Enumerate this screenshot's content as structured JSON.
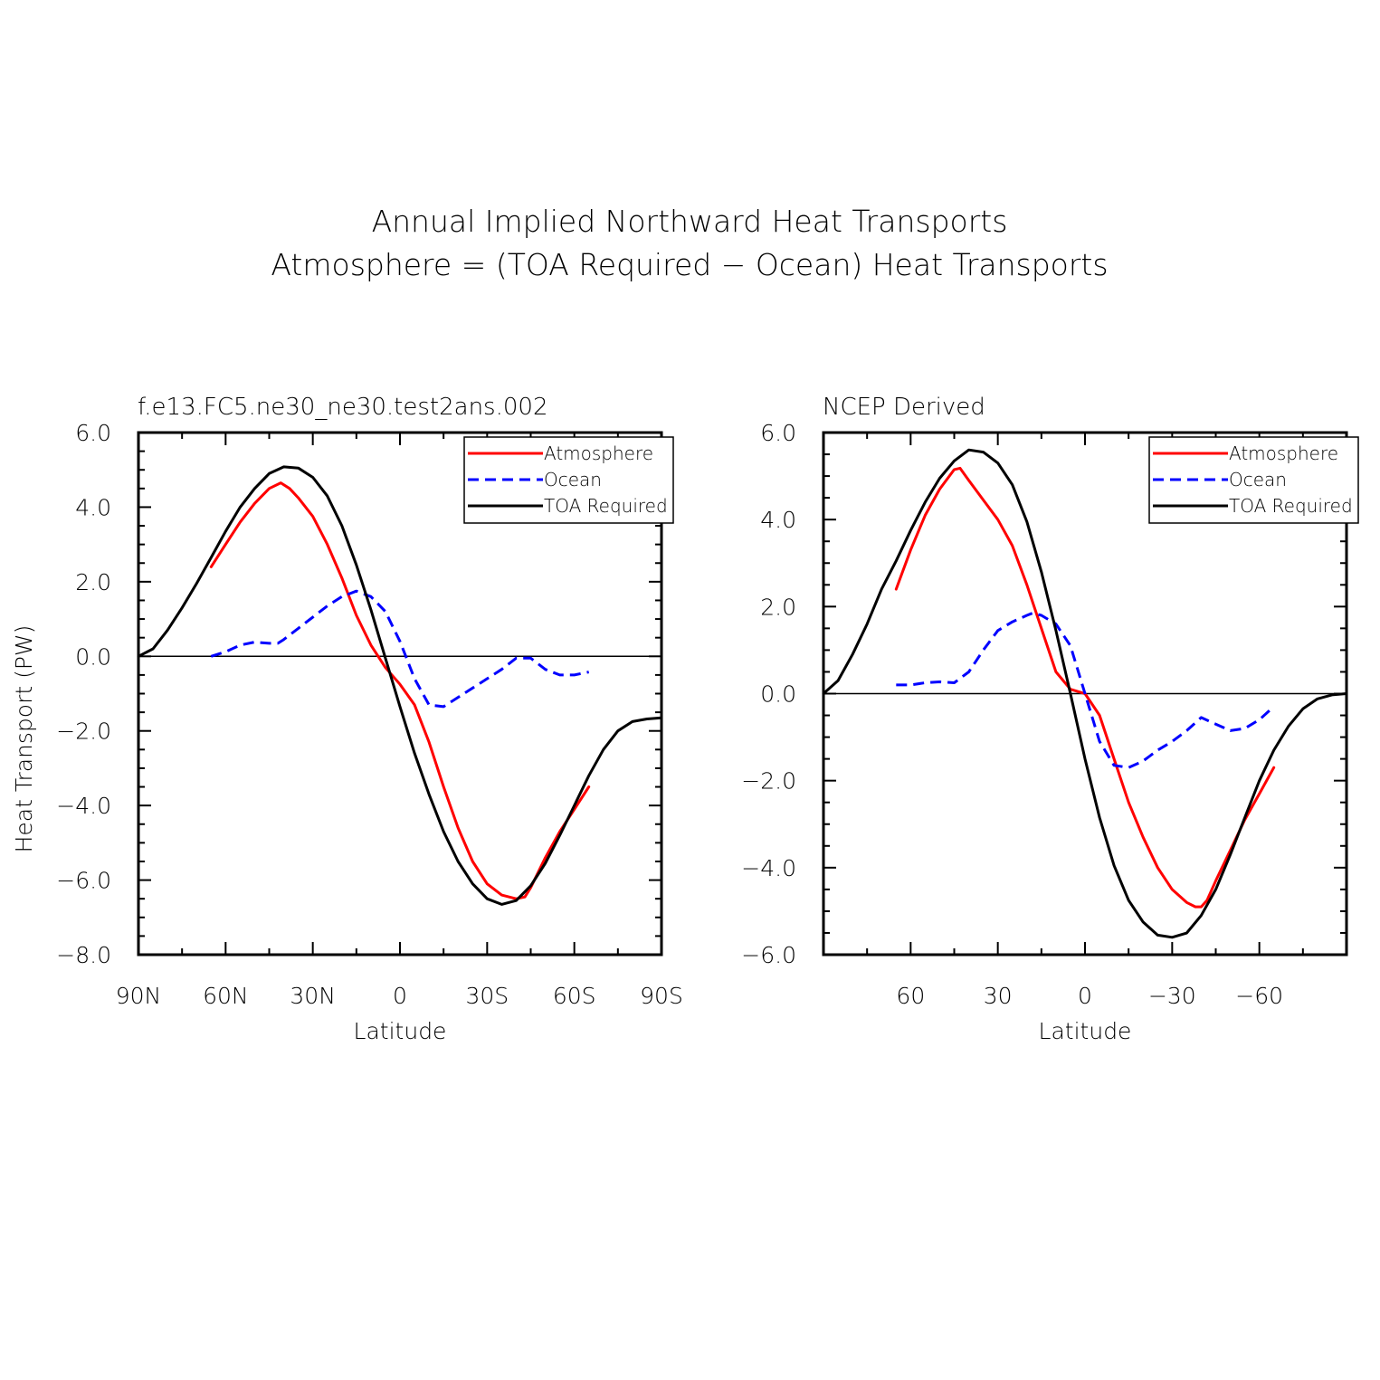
{
  "figure": {
    "title_line1": "Annual Implied Northward Heat Transports",
    "title_line2": "Atmosphere = (TOA Required − Ocean) Heat Transports"
  },
  "colors": {
    "atmosphere": "#ff0000",
    "ocean": "#0000ff",
    "toa": "#000000"
  },
  "chart_data": [
    {
      "type": "line",
      "title": "f.e13.FC5.ne30_ne30.test2ans.002",
      "xlabel": "Latitude",
      "ylabel": "Heat Transport (PW)",
      "xlim": [
        90,
        -90
      ],
      "ylim": [
        -8,
        6
      ],
      "xticks": [
        {
          "value": 90,
          "label": "90N"
        },
        {
          "value": 60,
          "label": "60N"
        },
        {
          "value": 30,
          "label": "30N"
        },
        {
          "value": 0,
          "label": "0"
        },
        {
          "value": -30,
          "label": "30S"
        },
        {
          "value": -60,
          "label": "60S"
        },
        {
          "value": -90,
          "label": "90S"
        }
      ],
      "yticks": [
        {
          "value": 6,
          "label": "6.0"
        },
        {
          "value": 4,
          "label": "4.0"
        },
        {
          "value": 2,
          "label": "2.0"
        },
        {
          "value": 0,
          "label": "0.0"
        },
        {
          "value": -2,
          "label": "−2.0"
        },
        {
          "value": -4,
          "label": "−4.0"
        },
        {
          "value": -6,
          "label": "−6.0"
        },
        {
          "value": -8,
          "label": "−8.0"
        }
      ],
      "legend_position": "top-right",
      "series": [
        {
          "name": "Atmosphere",
          "style": "solid",
          "x": [
            65,
            60,
            55,
            50,
            45,
            41,
            38,
            35,
            30,
            25,
            20,
            15,
            10,
            5,
            0,
            -5,
            -10,
            -15,
            -20,
            -25,
            -30,
            -35,
            -40,
            -43,
            -45,
            -50,
            -55,
            -60,
            -65
          ],
          "y": [
            2.4,
            3.0,
            3.6,
            4.1,
            4.5,
            4.65,
            4.5,
            4.25,
            3.75,
            3.0,
            2.1,
            1.1,
            0.3,
            -0.3,
            -0.75,
            -1.3,
            -2.3,
            -3.5,
            -4.6,
            -5.5,
            -6.1,
            -6.4,
            -6.5,
            -6.45,
            -6.2,
            -5.4,
            -4.7,
            -4.1,
            -3.5
          ]
        },
        {
          "name": "Ocean",
          "style": "dashed",
          "x": [
            65,
            60,
            55,
            50,
            45,
            42,
            40,
            35,
            30,
            25,
            20,
            15,
            10,
            5,
            0,
            -5,
            -10,
            -15,
            -20,
            -25,
            -30,
            -35,
            -40,
            -45,
            -50,
            -55,
            -60,
            -65
          ],
          "y": [
            0.0,
            0.12,
            0.3,
            0.38,
            0.35,
            0.35,
            0.45,
            0.75,
            1.05,
            1.35,
            1.6,
            1.75,
            1.6,
            1.2,
            0.4,
            -0.6,
            -1.3,
            -1.35,
            -1.1,
            -0.85,
            -0.6,
            -0.35,
            -0.05,
            -0.05,
            -0.35,
            -0.5,
            -0.5,
            -0.42
          ]
        },
        {
          "name": "TOA Required",
          "style": "solid",
          "x": [
            90,
            85,
            80,
            75,
            70,
            65,
            60,
            55,
            50,
            45,
            40,
            35,
            30,
            25,
            20,
            15,
            10,
            5,
            0,
            -5,
            -10,
            -15,
            -20,
            -25,
            -30,
            -35,
            -40,
            -45,
            -50,
            -55,
            -60,
            -65,
            -70,
            -75,
            -80,
            -85,
            -90
          ],
          "y": [
            0.0,
            0.2,
            0.7,
            1.3,
            1.95,
            2.65,
            3.35,
            4.0,
            4.5,
            4.9,
            5.08,
            5.05,
            4.8,
            4.3,
            3.5,
            2.45,
            1.25,
            -0.05,
            -1.35,
            -2.6,
            -3.7,
            -4.7,
            -5.5,
            -6.1,
            -6.5,
            -6.65,
            -6.55,
            -6.15,
            -5.55,
            -4.8,
            -4.0,
            -3.2,
            -2.5,
            -2.0,
            -1.75,
            -1.68,
            -1.65
          ]
        }
      ]
    },
    {
      "type": "line",
      "title": "NCEP Derived",
      "xlabel": "Latitude",
      "ylabel": "",
      "xlim": [
        90,
        -90
      ],
      "ylim": [
        -6,
        6
      ],
      "xticks": [
        {
          "value": 60,
          "label": "60"
        },
        {
          "value": 30,
          "label": "30"
        },
        {
          "value": 0,
          "label": "0"
        },
        {
          "value": -30,
          "label": "−30"
        },
        {
          "value": -60,
          "label": "−60"
        }
      ],
      "yticks": [
        {
          "value": 6,
          "label": "6.0"
        },
        {
          "value": 4,
          "label": "4.0"
        },
        {
          "value": 2,
          "label": "2.0"
        },
        {
          "value": 0,
          "label": "0.0"
        },
        {
          "value": -2,
          "label": "−2.0"
        },
        {
          "value": -4,
          "label": "−4.0"
        },
        {
          "value": -6,
          "label": "−6.0"
        }
      ],
      "legend_position": "top-right",
      "series": [
        {
          "name": "Atmosphere",
          "style": "solid",
          "x": [
            65,
            60,
            55,
            50,
            45,
            43,
            40,
            35,
            30,
            25,
            20,
            15,
            10,
            5,
            0,
            -5,
            -10,
            -15,
            -20,
            -25,
            -30,
            -35,
            -38,
            -40,
            -42,
            -45,
            -50,
            -55,
            -60,
            -65
          ],
          "y": [
            2.4,
            3.3,
            4.1,
            4.7,
            5.15,
            5.18,
            4.9,
            4.45,
            4.0,
            3.4,
            2.5,
            1.5,
            0.5,
            0.1,
            0.0,
            -0.5,
            -1.5,
            -2.5,
            -3.3,
            -4.0,
            -4.5,
            -4.8,
            -4.9,
            -4.9,
            -4.75,
            -4.3,
            -3.6,
            -2.9,
            -2.3,
            -1.7
          ]
        },
        {
          "name": "Ocean",
          "style": "dashed",
          "x": [
            65,
            60,
            55,
            50,
            45,
            40,
            35,
            30,
            25,
            20,
            18,
            15,
            10,
            5,
            0,
            -5,
            -10,
            -15,
            -20,
            -25,
            -30,
            -35,
            -40,
            -45,
            -50,
            -55,
            -60,
            -65
          ],
          "y": [
            0.2,
            0.2,
            0.25,
            0.27,
            0.25,
            0.5,
            1.0,
            1.45,
            1.65,
            1.8,
            1.85,
            1.8,
            1.6,
            1.1,
            0.0,
            -1.1,
            -1.65,
            -1.7,
            -1.55,
            -1.3,
            -1.1,
            -0.85,
            -0.55,
            -0.7,
            -0.85,
            -0.8,
            -0.6,
            -0.3
          ]
        },
        {
          "name": "TOA Required",
          "style": "solid",
          "x": [
            90,
            85,
            80,
            75,
            70,
            65,
            60,
            55,
            50,
            45,
            40,
            35,
            30,
            25,
            20,
            15,
            10,
            5,
            0,
            -5,
            -10,
            -15,
            -20,
            -25,
            -30,
            -35,
            -40,
            -45,
            -50,
            -55,
            -60,
            -65,
            -70,
            -75,
            -80,
            -85,
            -90
          ],
          "y": [
            0.0,
            0.3,
            0.9,
            1.6,
            2.4,
            3.05,
            3.75,
            4.4,
            4.95,
            5.35,
            5.6,
            5.55,
            5.3,
            4.8,
            3.95,
            2.8,
            1.45,
            0.0,
            -1.5,
            -2.85,
            -3.95,
            -4.75,
            -5.25,
            -5.55,
            -5.6,
            -5.5,
            -5.1,
            -4.5,
            -3.7,
            -2.85,
            -2.0,
            -1.3,
            -0.75,
            -0.35,
            -0.12,
            -0.03,
            0.0
          ]
        }
      ]
    }
  ]
}
